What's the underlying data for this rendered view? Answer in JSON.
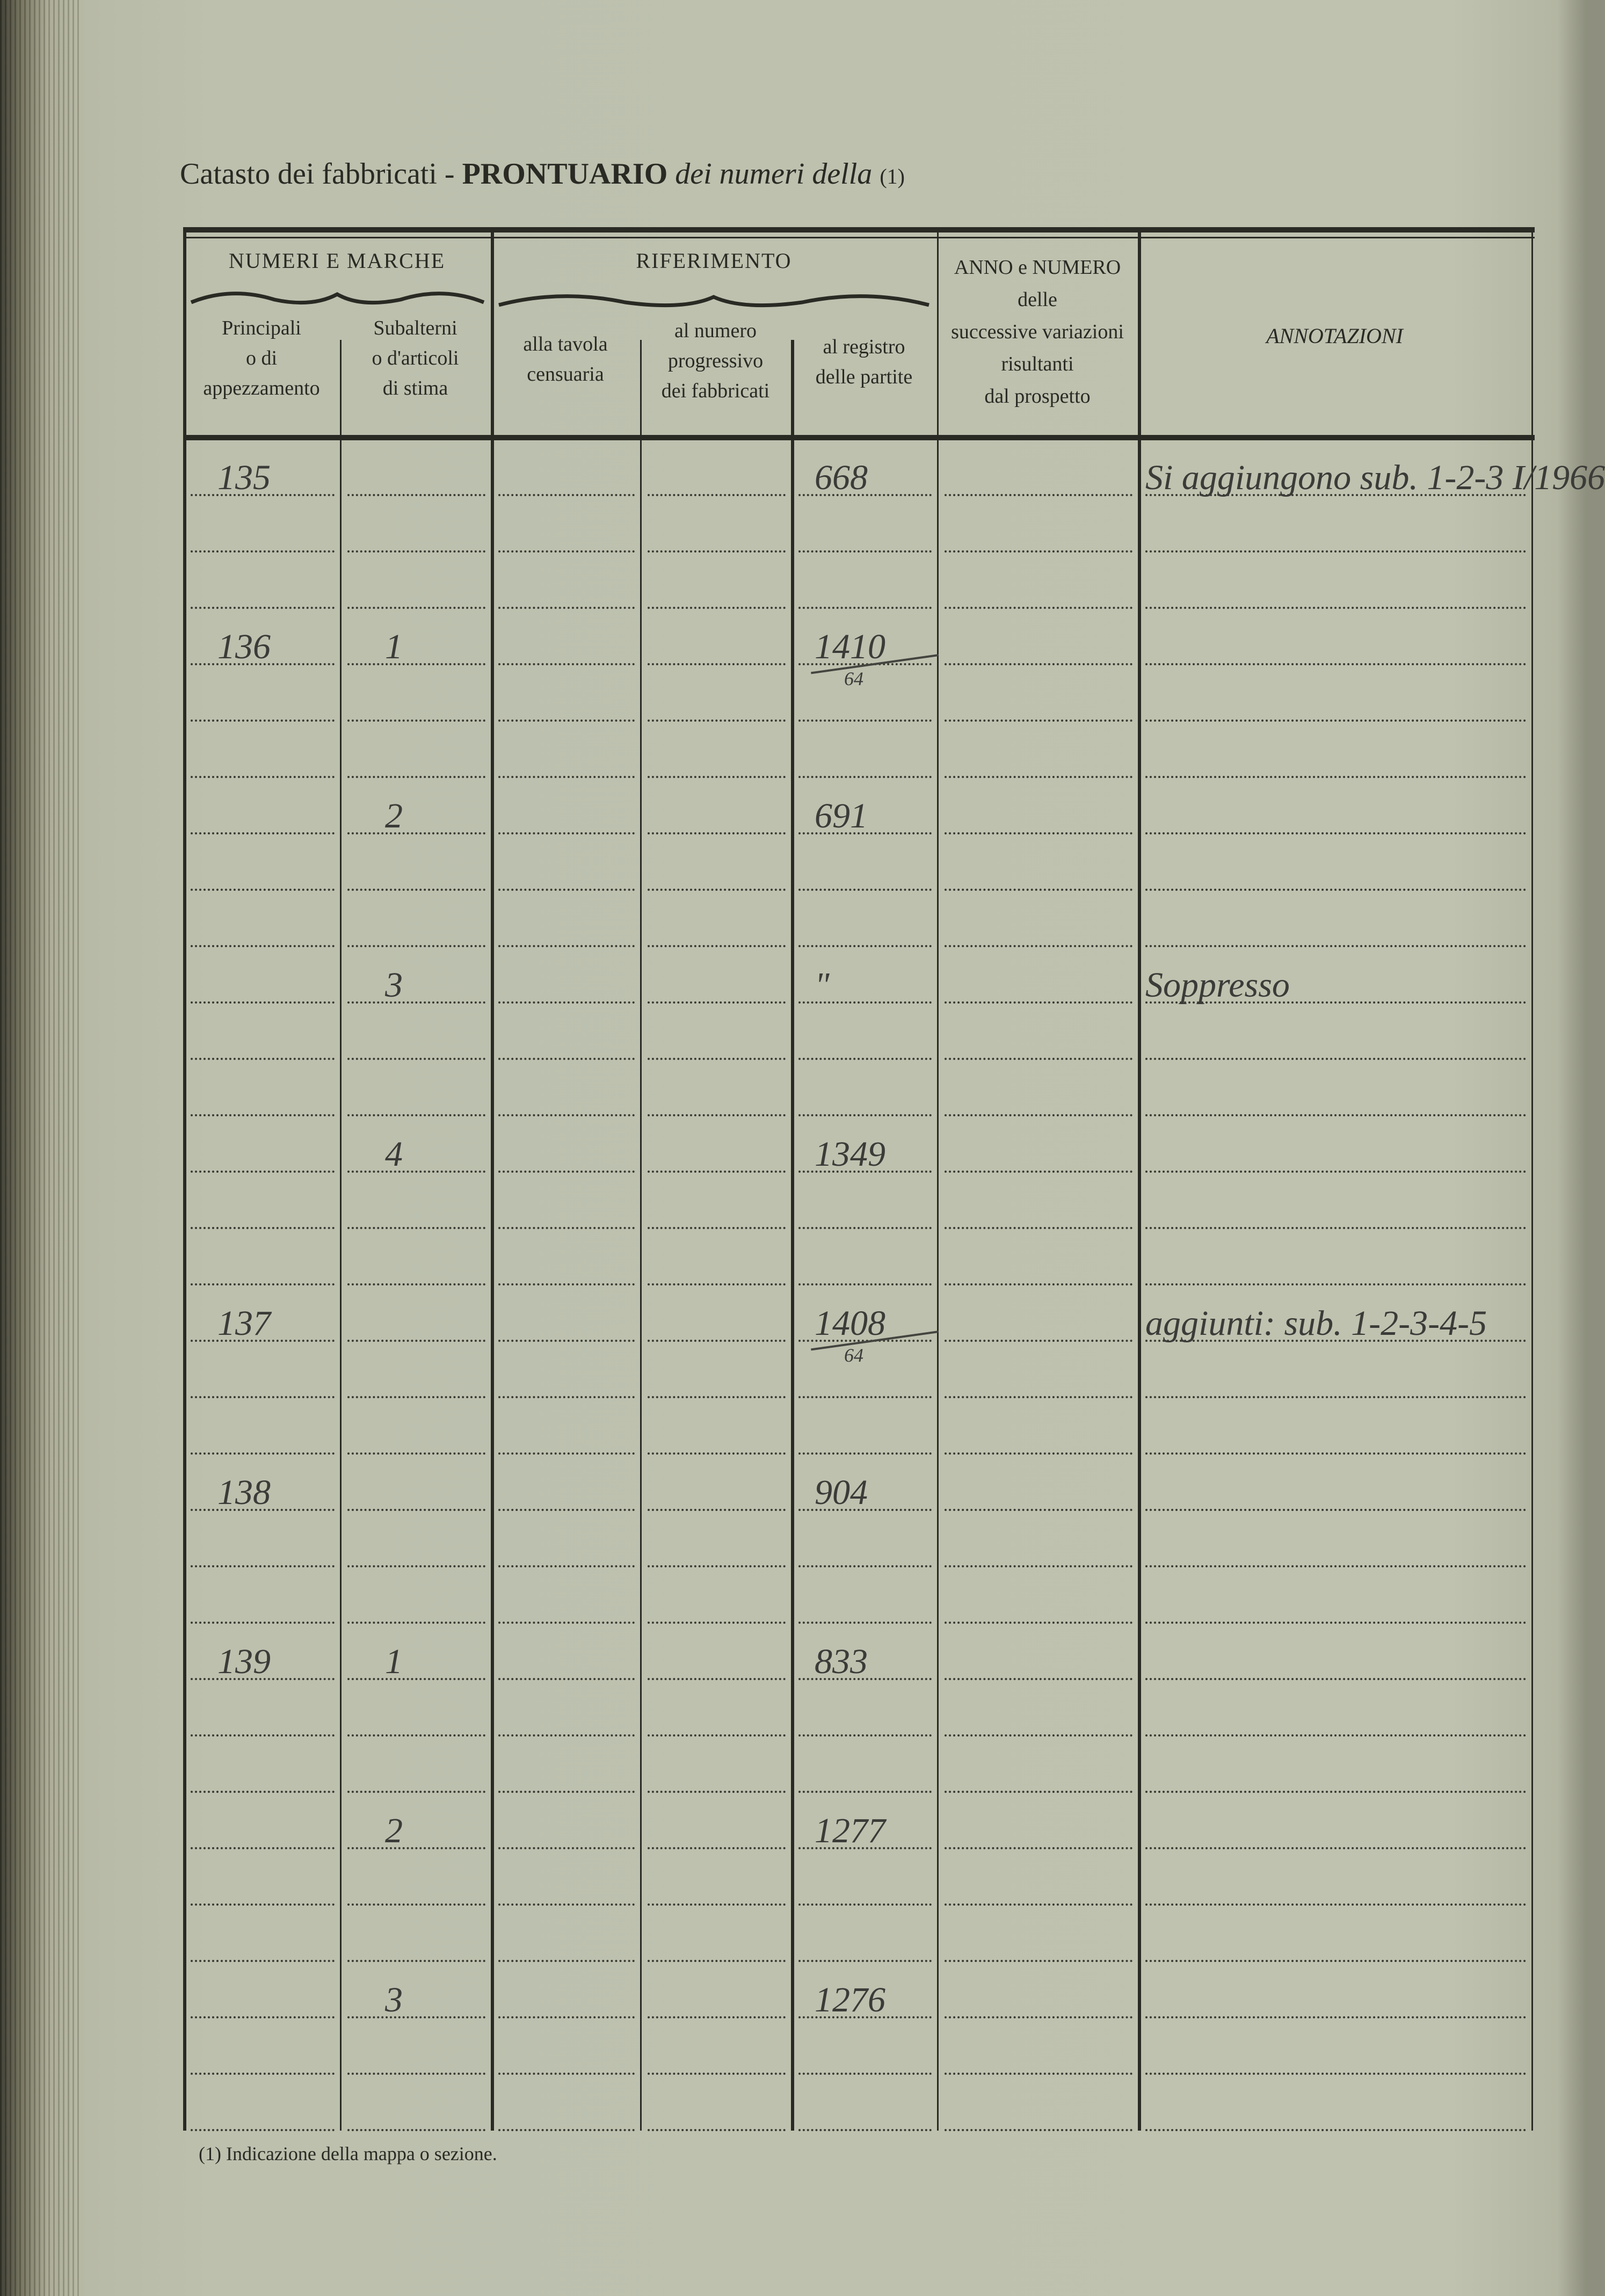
{
  "title": {
    "part1": "Catasto dei fabbricati - ",
    "bold": "PRONTUARIO",
    "italic": " dei numeri della ",
    "ref": "(1)"
  },
  "header": {
    "group_numeri": "NUMERI E MARCHE",
    "group_riferimento": "RIFERIMENTO",
    "col_principali": [
      "Principali",
      "o di",
      "appezzamento"
    ],
    "col_subalterni": [
      "Subalterni",
      "o d'articoli",
      "di stima"
    ],
    "col_tavola": [
      "alla tavola",
      "censuaria"
    ],
    "col_numero": [
      "al numero",
      "progressivo",
      "dei fabbricati"
    ],
    "col_registro": [
      "al registro",
      "delle partite"
    ],
    "col_anno": [
      "ANNO e NUMERO",
      "delle",
      "successive variazioni",
      "risultanti",
      "dal prospetto"
    ],
    "col_annotazioni": "ANNOTAZIONI"
  },
  "entries": [
    {
      "principale": "135",
      "subalterno": "",
      "registro": "668",
      "registro_den": "",
      "annotazione": "Si aggiungono sub. 1-2-3 I/1966"
    },
    {
      "principale": "136",
      "subalterno": "1",
      "registro": "1410",
      "registro_den": "64",
      "annotazione": ""
    },
    {
      "principale": "",
      "subalterno": "2",
      "registro": "691",
      "registro_den": "",
      "annotazione": ""
    },
    {
      "principale": "",
      "subalterno": "3",
      "registro": "\"",
      "registro_den": "",
      "annotazione": "Soppresso"
    },
    {
      "principale": "",
      "subalterno": "4",
      "registro": "1349",
      "registro_den": "",
      "annotazione": ""
    },
    {
      "principale": "137",
      "subalterno": "",
      "registro": "1408",
      "registro_den": "64",
      "annotazione": "aggiunti: sub. 1-2-3-4-5"
    },
    {
      "principale": "138",
      "subalterno": "",
      "registro": "904",
      "registro_den": "",
      "annotazione": ""
    },
    {
      "principale": "139",
      "subalterno": "1",
      "registro": "833",
      "registro_den": "",
      "annotazione": ""
    },
    {
      "principale": "",
      "subalterno": "2",
      "registro": "1277",
      "registro_den": "",
      "annotazione": ""
    },
    {
      "principale": "",
      "subalterno": "3",
      "registro": "1276",
      "registro_den": "",
      "annotazione": ""
    }
  ],
  "footnote": "(1) Indicazione della mappa o sezione."
}
